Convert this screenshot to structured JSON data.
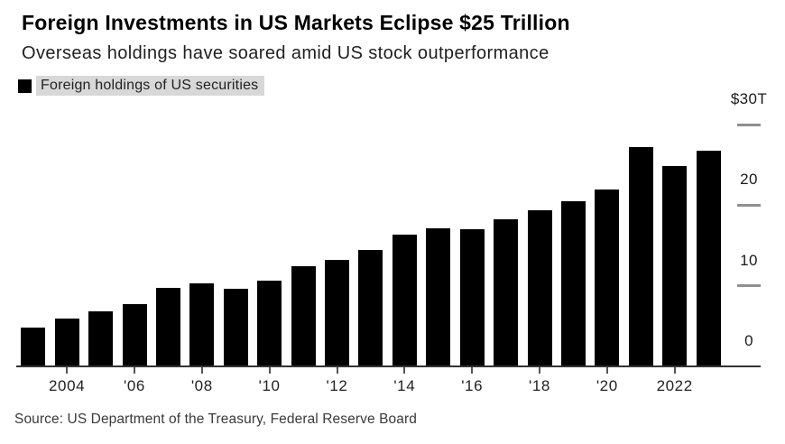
{
  "chart_data": {
    "type": "bar",
    "title": "Foreign Investments in US Markets Eclipse $25 Trillion",
    "subtitle": "Overseas holdings have soared amid US stock outperformance",
    "legend": [
      "Foreign holdings of US securities"
    ],
    "source": "Source: US Department of the Treasury, Federal Reserve Board",
    "unit": "trillions of US dollars",
    "x": [
      2003,
      2004,
      2005,
      2006,
      2007,
      2008,
      2009,
      2010,
      2011,
      2012,
      2013,
      2014,
      2015,
      2016,
      2017,
      2018,
      2019,
      2020,
      2021,
      2022,
      2023
    ],
    "values": [
      4.8,
      5.9,
      6.8,
      7.7,
      9.7,
      10.3,
      9.6,
      10.6,
      12.4,
      13.2,
      14.4,
      16.3,
      17.1,
      17.0,
      18.3,
      19.4,
      20.5,
      22.0,
      27.2,
      24.9,
      26.8
    ],
    "x_ticks": [
      {
        "year": 2004,
        "label": "2004"
      },
      {
        "year": 2006,
        "label": "'06"
      },
      {
        "year": 2008,
        "label": "'08"
      },
      {
        "year": 2010,
        "label": "'10"
      },
      {
        "year": 2012,
        "label": "'12"
      },
      {
        "year": 2014,
        "label": "'14"
      },
      {
        "year": 2016,
        "label": "'16"
      },
      {
        "year": 2018,
        "label": "'18"
      },
      {
        "year": 2020,
        "label": "'20"
      },
      {
        "year": 2022,
        "label": "2022"
      }
    ],
    "y_ticks": [
      {
        "value": 0,
        "label": "0"
      },
      {
        "value": 10,
        "label": "10"
      },
      {
        "value": 20,
        "label": "20"
      },
      {
        "value": 30,
        "label": "$30T"
      }
    ],
    "ylim": [
      0,
      30
    ],
    "y_axis_side": "right",
    "grid": false,
    "legend_position": "top-left",
    "bar_color": "#000000",
    "legend_highlight_color": "#d8d8d8",
    "axis_dash_color": "#8f8f8f"
  }
}
